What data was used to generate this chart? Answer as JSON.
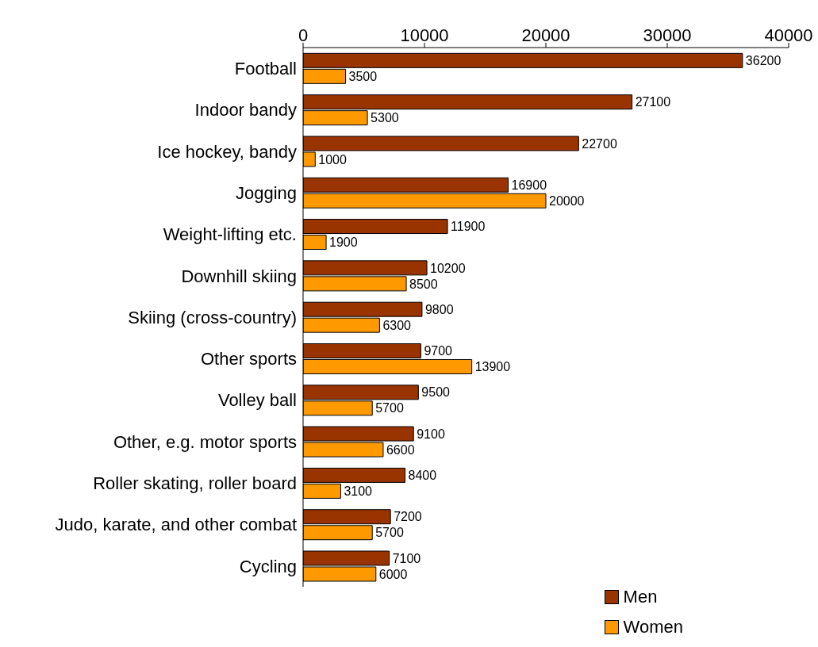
{
  "chart_data": {
    "type": "bar",
    "orientation": "horizontal",
    "categories": [
      "Football",
      "Indoor bandy",
      "Ice hockey, bandy",
      "Jogging",
      "Weight-lifting etc.",
      "Downhill skiing",
      "Skiing (cross-country)",
      "Other sports",
      "Volley ball",
      "Other, e.g. motor sports",
      "Roller skating, roller board",
      "Judo, karate, and other combat",
      "Cycling"
    ],
    "series": [
      {
        "name": "Men",
        "color": "#993300",
        "values": [
          36200,
          27100,
          22700,
          16900,
          11900,
          10200,
          9800,
          9700,
          9500,
          9100,
          8400,
          7200,
          7100
        ]
      },
      {
        "name": "Women",
        "color": "#ff9900",
        "values": [
          3500,
          5300,
          1000,
          20000,
          1900,
          8500,
          6300,
          13900,
          5700,
          6600,
          3100,
          5700,
          6000
        ]
      }
    ],
    "xlim": [
      0,
      40000
    ],
    "xticks": [
      0,
      10000,
      20000,
      30000,
      40000
    ],
    "data_labels": true,
    "grid": false,
    "legend": "bottom right"
  }
}
